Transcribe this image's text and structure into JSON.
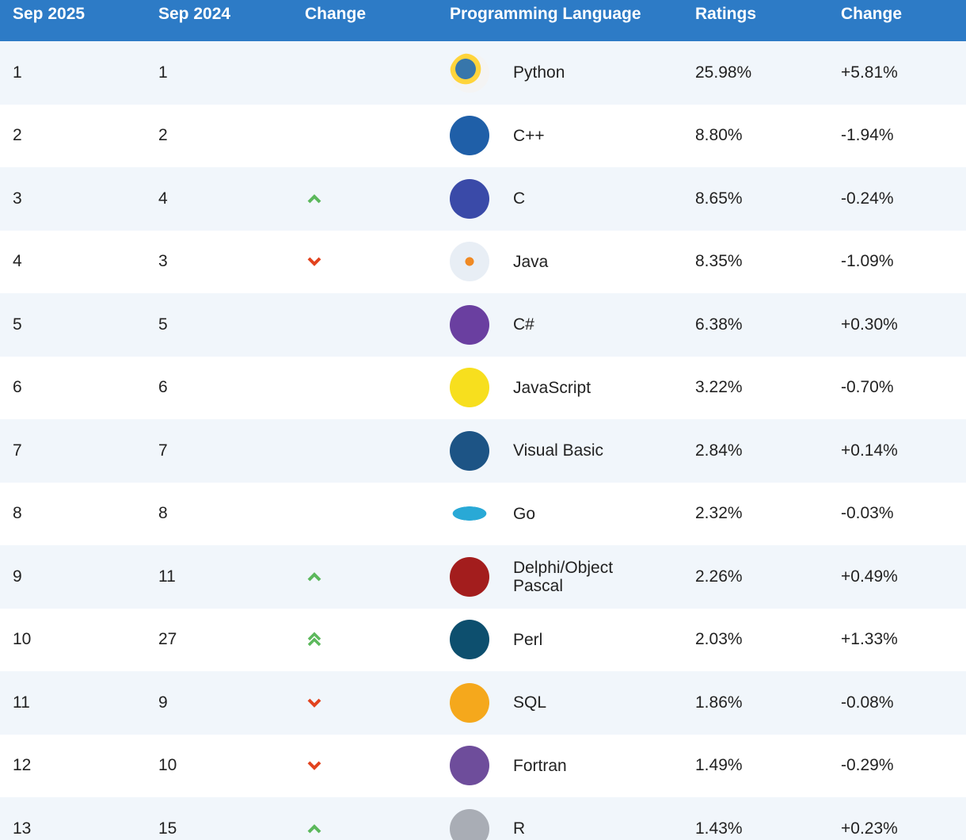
{
  "table": {
    "header": [
      "Sep 2025",
      "Sep 2024",
      "Change",
      "Programming Language",
      "Ratings",
      "Change"
    ],
    "rows": [
      [
        "1",
        "1",
        "Python",
        "25.98%",
        "+5.81%"
      ],
      [
        "2",
        "2",
        "C++",
        "8.80%",
        "-1.94%"
      ],
      [
        "3",
        "4",
        "C",
        "8.65%",
        "-0.24%"
      ],
      [
        "4",
        "3",
        "Java",
        "8.35%",
        "-1.09%"
      ],
      [
        "5",
        "5",
        "C#",
        "6.38%",
        "+0.30%"
      ],
      [
        "6",
        "6",
        "JavaScript",
        "3.22%",
        "-0.70%"
      ],
      [
        "7",
        "7",
        "Visual Basic",
        "2.84%",
        "+0.14%"
      ],
      [
        "8",
        "8",
        "Go",
        "2.32%",
        "-0.03%"
      ],
      [
        "9",
        "11",
        "Delphi/Object Pascal",
        "2.26%",
        "+0.49%"
      ],
      [
        "10",
        "27",
        "Perl",
        "2.03%",
        "+1.33%"
      ],
      [
        "11",
        "9",
        "SQL",
        "1.86%",
        "-0.08%"
      ],
      [
        "12",
        "10",
        "Fortran",
        "1.49%",
        "-0.29%"
      ],
      [
        "13",
        "15",
        "R",
        "1.43%",
        "+0.23%"
      ]
    ]
  }
}
